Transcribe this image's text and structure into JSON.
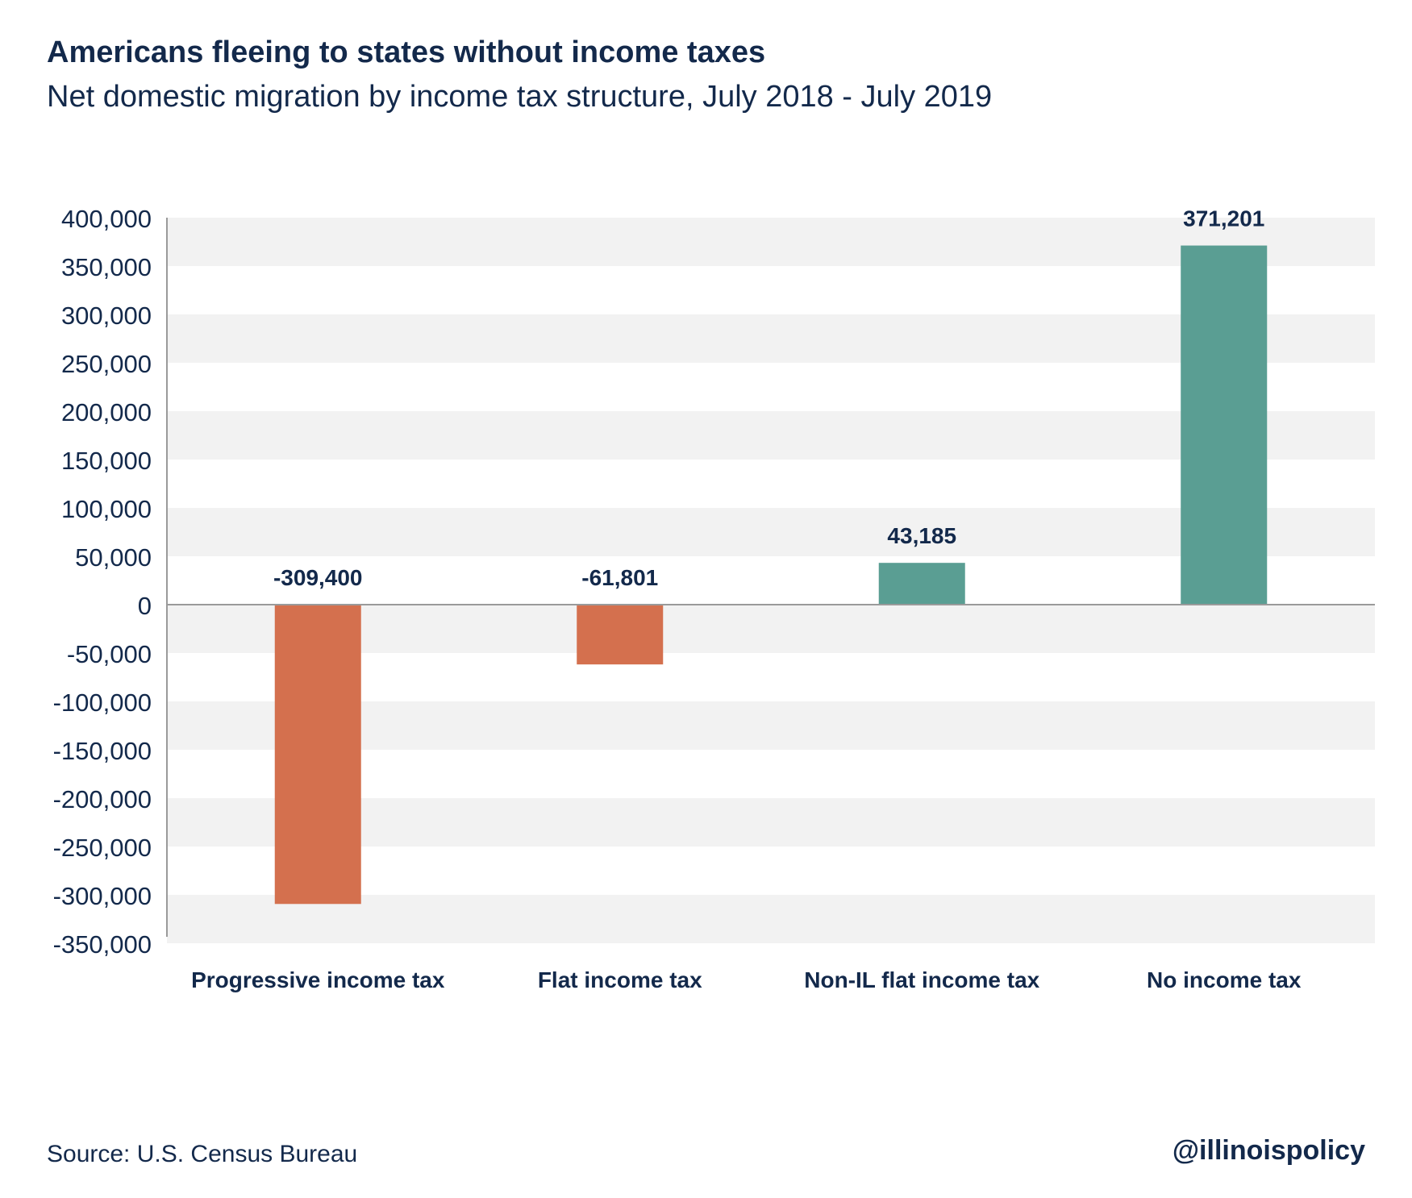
{
  "chart_data": {
    "type": "bar",
    "title": "Americans fleeing to states without income taxes",
    "subtitle": "Net domestic migration by income tax structure, July 2018 - July 2019",
    "categories": [
      "Progressive income tax",
      "Flat income tax",
      "Non-IL flat income tax",
      "No income tax"
    ],
    "values": [
      -309400,
      -61801,
      43185,
      371201
    ],
    "data_labels": [
      "-309,400",
      "-61,801",
      "43,185",
      "371,201"
    ],
    "ylim": [
      -350000,
      400000
    ],
    "yticks": [
      400000,
      350000,
      300000,
      250000,
      200000,
      150000,
      100000,
      50000,
      0,
      -50000,
      -100000,
      -150000,
      -200000,
      -250000,
      -300000,
      -350000
    ],
    "ytick_labels": [
      "400,000",
      "350,000",
      "300,000",
      "250,000",
      "200,000",
      "150,000",
      "100,000",
      "50,000",
      "0",
      "-50,000",
      "-100,000",
      "-150,000",
      "-200,000",
      "-250,000",
      "-300,000",
      "-350,000"
    ],
    "grid": "alternating bands",
    "colors": {
      "negative": "#d4704e",
      "positive": "#5a9e93",
      "band": "#f2f2f2"
    }
  },
  "footer": {
    "source": "Source: U.S. Census Bureau",
    "handle": "@illinoispolicy"
  }
}
